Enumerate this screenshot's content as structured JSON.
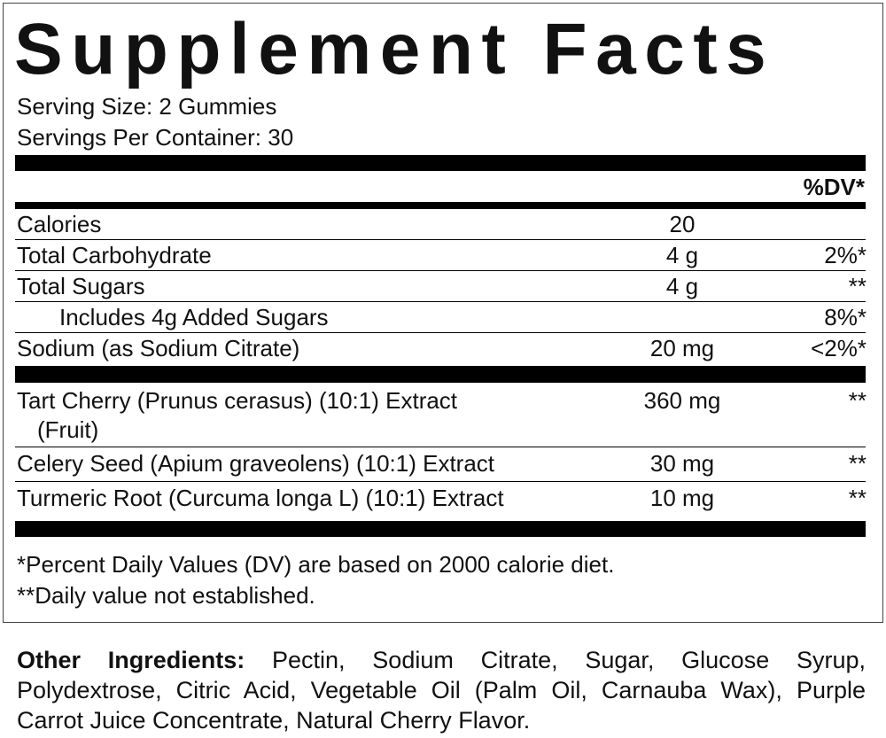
{
  "title": "Supplement Facts",
  "serving_size": "Serving Size: 2 Gummies",
  "servings_per_container": "Servings Per Container: 30",
  "dv_header": "%DV*",
  "nutrients": [
    {
      "name": "Calories",
      "amount": "20"
    },
    {
      "name": "Total Carbohydrate",
      "amount": "4 g",
      "dv": "2%*"
    },
    {
      "name": "Total Sugars",
      "amount": "4 g",
      "dv": "**"
    },
    {
      "name": "Includes 4g Added Sugars",
      "dv": "8%*"
    },
    {
      "name": "Sodium (as Sodium Citrate)",
      "amount": "20 mg",
      "dv": "<2%*"
    }
  ],
  "ingredients": [
    {
      "name": "Tart Cherry (Prunus cerasus) (10:1) Extract",
      "name_continued": "(Fruit)",
      "amount": "360 mg",
      "dv": "**"
    },
    {
      "name": "Celery Seed (Apium graveolens)  (10:1) Extract",
      "amount": "30 mg",
      "dv": "**"
    },
    {
      "name": "Turmeric Root (Curcuma longa L)  (10:1) Extract",
      "amount": "10 mg",
      "dv": "**"
    }
  ],
  "footnotes": [
    "*Percent Daily Values (DV) are based on 2000 calorie diet.",
    "**Daily value not established."
  ],
  "other_ingredients": {
    "label": "Other Ingredients:",
    "text": "Pectin, Sodium Citrate, Sugar, Glucose Syrup, Polydextrose, Citric Acid, Vegetable Oil (Palm Oil, Carnauba Wax), Purple Carrot Juice Concentrate, Natural Cherry Flavor."
  }
}
